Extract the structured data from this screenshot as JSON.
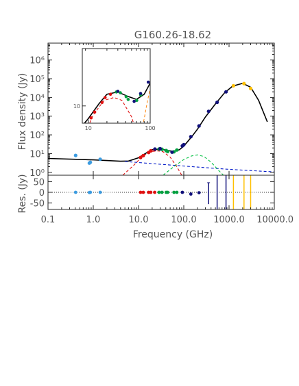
{
  "chart_data": [
    {
      "type": "line",
      "panel": "main-sed",
      "title": "G160.26-18.62",
      "xlabel": "",
      "ylabel": "Flux density (Jy)",
      "xscale": "log",
      "yscale": "log",
      "xlim": [
        0.1,
        10000
      ],
      "ylim": [
        0.7,
        8000000
      ],
      "ytick_labels": [
        "10⁰",
        "10¹",
        "10²",
        "10³",
        "10⁴",
        "10⁵",
        "10⁶"
      ],
      "ytick_values": [
        1,
        10,
        100,
        1000,
        10000,
        100000,
        1000000
      ],
      "series": [
        {
          "color": "#3b9be0",
          "style": "points",
          "points": [
            [
              0.408,
              8.0
            ],
            [
              0.82,
              3.1
            ],
            [
              0.86,
              3.4
            ],
            [
              1.42,
              5.0
            ]
          ]
        },
        {
          "color": "#e01010",
          "style": "points",
          "points": [
            [
              11.1,
              6.2
            ],
            [
              12.7,
              7.8
            ],
            [
              16.7,
              11.5
            ],
            [
              18.7,
              14.0
            ],
            [
              22.8,
              16.0
            ]
          ]
        },
        {
          "color": "#00a040",
          "style": "points",
          "points": [
            [
              28.4,
              17.5
            ],
            [
              33.0,
              17.0
            ],
            [
              40.8,
              14.5
            ],
            [
              44.1,
              13.0
            ],
            [
              60.7,
              12.5
            ],
            [
              70.4,
              15.5
            ]
          ]
        },
        {
          "color": "#10107a",
          "style": "points",
          "points": [
            [
              23.0,
              17.5
            ],
            [
              30.0,
              18.0
            ],
            [
              55.0,
              12.0
            ],
            [
              93.0,
              26.0
            ],
            [
              100.0,
              30.0
            ],
            [
              143.0,
              80.0
            ],
            [
              217.0,
              300.0
            ],
            [
              353.0,
              1800.0
            ],
            [
              545.0,
              5500.0
            ],
            [
              857.0,
              20000.0
            ]
          ]
        },
        {
          "color": "#ffc000",
          "style": "points",
          "points": [
            [
              1250.0,
              42000.0
            ],
            [
              2140.0,
              55000.0
            ],
            [
              3000.0,
              30000.0
            ]
          ]
        },
        {
          "color": "#000000",
          "style": "solid-line",
          "role": "total model",
          "points": [
            [
              0.1,
              5.5
            ],
            [
              1.0,
              4.6
            ],
            [
              4.0,
              3.9
            ],
            [
              6.0,
              4.0
            ],
            [
              10.0,
              6.0
            ],
            [
              15.0,
              11.0
            ],
            [
              20.0,
              16.0
            ],
            [
              30.0,
              17.5
            ],
            [
              45.0,
              14.5
            ],
            [
              60.0,
              13.0
            ],
            [
              80.0,
              16.0
            ],
            [
              100.0,
              25.0
            ],
            [
              150.0,
              80.0
            ],
            [
              200.0,
              200.0
            ],
            [
              300.0,
              900.0
            ],
            [
              500.0,
              4500.0
            ],
            [
              800.0,
              18000.0
            ],
            [
              1200.0,
              40000.0
            ],
            [
              2000.0,
              57000.0
            ],
            [
              3000.0,
              35000.0
            ],
            [
              4500.0,
              7000.0
            ],
            [
              7000.0,
              500.0
            ]
          ]
        },
        {
          "color": "#0018c8",
          "style": "dashed-line",
          "role": "free-free component",
          "points": [
            [
              5.0,
              3.8
            ],
            [
              30.0,
              2.7
            ],
            [
              200.0,
              1.9
            ],
            [
              1000.0,
              1.45
            ],
            [
              10000.0,
              1.05
            ]
          ]
        },
        {
          "color": "#e01010",
          "style": "dashed-line",
          "role": "spinning-dust component",
          "points": [
            [
              4.5,
              0.7
            ],
            [
              8.0,
              2.5
            ],
            [
              12.0,
              7.0
            ],
            [
              18.0,
              12.5
            ],
            [
              26.0,
              14.0
            ],
            [
              35.0,
              12.5
            ],
            [
              50.0,
              6.5
            ],
            [
              70.0,
              2.0
            ],
            [
              90.0,
              0.7
            ]
          ]
        },
        {
          "color": "#00c040",
          "style": "dashed-line",
          "role": "second spinning-dust component",
          "points": [
            [
              35.0,
              0.7
            ],
            [
              60.0,
              2.0
            ],
            [
              100.0,
              4.8
            ],
            [
              150.0,
              7.5
            ],
            [
              200.0,
              8.5
            ],
            [
              280.0,
              7.0
            ],
            [
              400.0,
              3.5
            ],
            [
              600.0,
              1.2
            ],
            [
              750.0,
              0.7
            ]
          ]
        }
      ]
    },
    {
      "type": "line",
      "panel": "inset-zoom",
      "title": "",
      "xlabel": "",
      "ylabel": "",
      "xscale": "log",
      "yscale": "log",
      "xlim": [
        8,
        100
      ],
      "ylim": [
        5,
        100
      ],
      "xtick_labels": [
        "10",
        "100"
      ],
      "xtick_values": [
        10,
        100
      ],
      "ytick_labels": [
        "10"
      ],
      "ytick_values": [
        10
      ],
      "series": [
        {
          "color": "#e01010",
          "style": "points",
          "points": [
            [
              11.1,
              6.2
            ],
            [
              12.7,
              7.8
            ],
            [
              16.7,
              11.5
            ],
            [
              18.7,
              14.0
            ],
            [
              22.8,
              16.0
            ]
          ]
        },
        {
          "color": "#00a040",
          "style": "points",
          "points": [
            [
              28.4,
              17.5
            ],
            [
              33.0,
              17.0
            ],
            [
              40.8,
              14.5
            ],
            [
              44.1,
              13.0
            ],
            [
              60.7,
              12.5
            ],
            [
              70.4,
              15.5
            ]
          ]
        },
        {
          "color": "#10107a",
          "style": "points",
          "points": [
            [
              30.0,
              18.0
            ],
            [
              55.0,
              12.0
            ],
            [
              70.0,
              16.5
            ],
            [
              93.0,
              26.0
            ]
          ]
        },
        {
          "color": "#000000",
          "style": "solid-line",
          "role": "total model",
          "points": [
            [
              8.0,
              4.5
            ],
            [
              10.0,
              6.0
            ],
            [
              15.0,
              11.0
            ],
            [
              20.0,
              16.0
            ],
            [
              30.0,
              17.5
            ],
            [
              45.0,
              14.5
            ],
            [
              60.0,
              13.0
            ],
            [
              80.0,
              16.0
            ],
            [
              100.0,
              25.0
            ]
          ]
        },
        {
          "color": "#e01010",
          "style": "dashed-line",
          "role": "spinning-dust component",
          "points": [
            [
              8.0,
              2.5
            ],
            [
              12.0,
              7.0
            ],
            [
              18.0,
              12.5
            ],
            [
              26.0,
              14.0
            ],
            [
              35.0,
              12.5
            ],
            [
              50.0,
              6.5
            ],
            [
              70.0,
              2.0
            ]
          ]
        },
        {
          "color": "#ff9020",
          "style": "dashed-line",
          "role": "thermal dust component",
          "points": [
            [
              70.0,
              3.0
            ],
            [
              80.0,
              6.0
            ],
            [
              90.0,
              12.0
            ],
            [
              100.0,
              20.0
            ]
          ]
        },
        {
          "color": "#00c040",
          "style": "dashed-line",
          "role": "second spinning-dust component",
          "points": [
            [
              80.0,
              3.0
            ],
            [
              100.0,
              5.0
            ]
          ]
        }
      ]
    },
    {
      "type": "scatter",
      "panel": "residuals",
      "title": "",
      "xlabel": "Frequency (GHz)",
      "ylabel": "Res. (Jy)",
      "xscale": "log",
      "xlim": [
        0.1,
        10000
      ],
      "ylim": [
        -80,
        80
      ],
      "xtick_labels": [
        "0.1",
        "1.0",
        "10.0",
        "100.0",
        "1000.0",
        "10000.0"
      ],
      "xtick_values": [
        0.1,
        1,
        10,
        100,
        1000,
        10000
      ],
      "ytick_labels": [
        "50",
        "0",
        "-50"
      ],
      "ytick_values": [
        50,
        0,
        -50
      ],
      "zero_line": "dotted",
      "series": [
        {
          "color": "#3b9be0",
          "points": [
            [
              0.408,
              0
            ],
            [
              0.82,
              -1
            ],
            [
              0.86,
              0
            ],
            [
              1.42,
              0
            ]
          ]
        },
        {
          "color": "#e01010",
          "points": [
            [
              11.1,
              0
            ],
            [
              12.7,
              0
            ],
            [
              16.7,
              0
            ],
            [
              18.7,
              0
            ],
            [
              22.8,
              0
            ]
          ]
        },
        {
          "color": "#00a040",
          "points": [
            [
              28.4,
              0
            ],
            [
              33.0,
              0
            ],
            [
              40.8,
              0
            ],
            [
              44.1,
              0
            ],
            [
              60.7,
              0
            ],
            [
              70.4,
              0
            ]
          ]
        },
        {
          "color": "#10107a",
          "points": [
            [
              93.0,
              0
            ],
            [
              143.0,
              -8
            ],
            [
              217.0,
              -2
            ]
          ]
        }
      ],
      "error_bars": [
        {
          "color": "#10107a",
          "x": 353.0,
          "y_low": -55,
          "y_high": 45
        },
        {
          "color": "#10107a",
          "x": 545.0,
          "y_low": -80,
          "y_high": 80
        },
        {
          "color": "#10107a",
          "x": 857.0,
          "y_low": -80,
          "y_high": 80
        },
        {
          "color": "#ffc000",
          "x": 1250.0,
          "y_low": -80,
          "y_high": 80
        },
        {
          "color": "#ffc000",
          "x": 2140.0,
          "y_low": -80,
          "y_high": 80
        },
        {
          "color": "#ffc000",
          "x": 3000.0,
          "y_low": -80,
          "y_high": 80
        }
      ]
    }
  ]
}
